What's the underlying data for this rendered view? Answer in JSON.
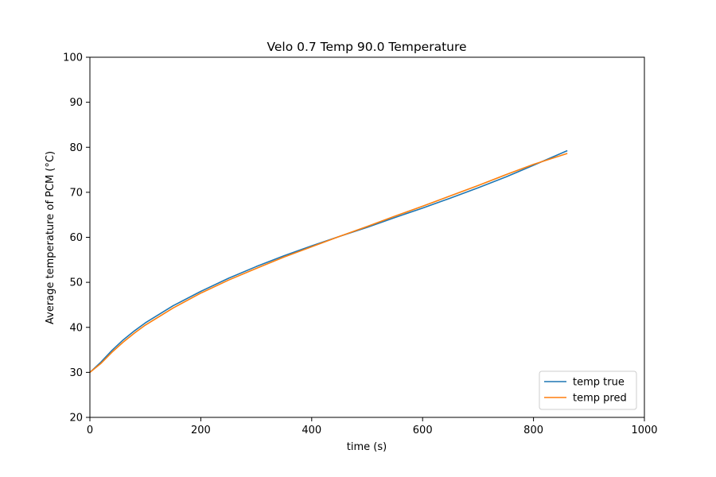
{
  "chart_data": {
    "type": "line",
    "title": "Velo 0.7 Temp 90.0 Temperature",
    "xlabel": "time (s)",
    "ylabel": "Average temperature of PCM (°C)",
    "xlim": [
      0,
      1000
    ],
    "ylim": [
      20,
      100
    ],
    "xticks": [
      0,
      200,
      400,
      600,
      800,
      1000
    ],
    "yticks": [
      20,
      30,
      40,
      50,
      60,
      70,
      80,
      90,
      100
    ],
    "xtick_labels": [
      "0",
      "200",
      "400",
      "600",
      "800",
      "1000"
    ],
    "ytick_labels": [
      "20",
      "30",
      "40",
      "50",
      "60",
      "70",
      "80",
      "90",
      "100"
    ],
    "grid": false,
    "legend_position": "lower-right",
    "series": [
      {
        "name": "temp true",
        "color": "#1f77b4",
        "x": [
          0,
          20,
          40,
          60,
          80,
          100,
          150,
          200,
          250,
          300,
          350,
          400,
          450,
          500,
          550,
          600,
          650,
          700,
          750,
          800,
          860
        ],
        "y": [
          30.0,
          32.3,
          34.9,
          37.2,
          39.2,
          41.0,
          44.8,
          48.0,
          50.9,
          53.5,
          55.9,
          58.1,
          60.2,
          62.2,
          64.4,
          66.5,
          68.7,
          71.0,
          73.4,
          76.0,
          79.2
        ]
      },
      {
        "name": "temp pred",
        "color": "#ff7f0e",
        "x": [
          0,
          20,
          40,
          60,
          80,
          100,
          150,
          200,
          250,
          300,
          350,
          400,
          450,
          500,
          550,
          600,
          650,
          700,
          750,
          800,
          860
        ],
        "y": [
          30.0,
          32.0,
          34.5,
          36.7,
          38.7,
          40.5,
          44.3,
          47.6,
          50.5,
          53.1,
          55.6,
          57.9,
          60.2,
          62.4,
          64.7,
          66.9,
          69.2,
          71.5,
          73.9,
          76.2,
          78.6
        ]
      }
    ]
  }
}
